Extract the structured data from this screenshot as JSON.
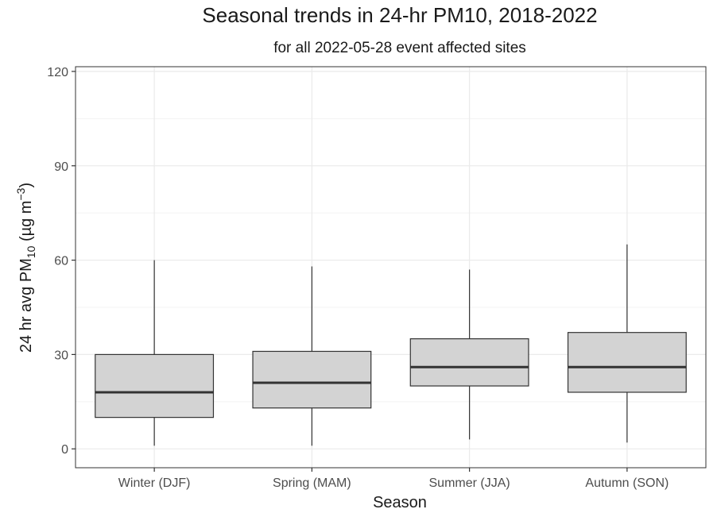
{
  "chart_data": {
    "type": "boxplot",
    "title": "Seasonal trends in 24-hr PM10, 2018-2022",
    "subtitle": "for all 2022-05-28 event affected sites",
    "xlabel": "Season",
    "ylabel": {
      "main": "24 hr avg PM",
      "sub": "10",
      "unit_open": " (µg m",
      "sup": "−3",
      "unit_close": ")"
    },
    "categories": [
      "Winter (DJF)",
      "Spring (MAM)",
      "Summer (JJA)",
      "Autumn (SON)"
    ],
    "boxes": [
      {
        "category": "Winter (DJF)",
        "whisker_low": 1,
        "q1": 10,
        "median": 18,
        "q3": 30,
        "whisker_high": 60
      },
      {
        "category": "Spring (MAM)",
        "whisker_low": 1,
        "q1": 13,
        "median": 21,
        "q3": 31,
        "whisker_high": 58
      },
      {
        "category": "Summer (JJA)",
        "whisker_low": 3,
        "q1": 20,
        "median": 26,
        "q3": 35,
        "whisker_high": 57
      },
      {
        "category": "Autumn (SON)",
        "whisker_low": 2,
        "q1": 18,
        "median": 26,
        "q3": 37,
        "whisker_high": 65
      }
    ],
    "yticks": [
      0,
      30,
      60,
      90,
      120
    ],
    "ylim": [
      -6,
      121.5
    ],
    "grid": true,
    "box_fill": "#d3d3d3",
    "line_color": "#333333"
  }
}
